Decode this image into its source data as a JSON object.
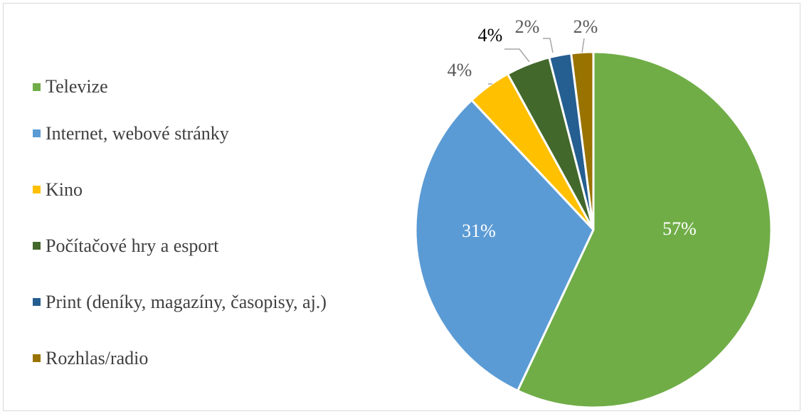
{
  "chart_data": {
    "type": "pie",
    "categories": [
      "Televize",
      "Internet, webové stránky",
      "Kino",
      "Počítačové hry a esport",
      "Print (deníky, magazíny, časopisy, aj.)",
      "Rozhlas/radio"
    ],
    "values": [
      57,
      31,
      4,
      4,
      2,
      2
    ],
    "data_labels": [
      "57%",
      "31%",
      "4%",
      "4%",
      "2%",
      "2%"
    ],
    "colors": [
      "#70ad47",
      "#5b9bd5",
      "#ffc000",
      "#43682b",
      "#255e91",
      "#997300"
    ],
    "legend_position": "left",
    "start_angle": "12 o'clock",
    "direction": "clockwise"
  }
}
